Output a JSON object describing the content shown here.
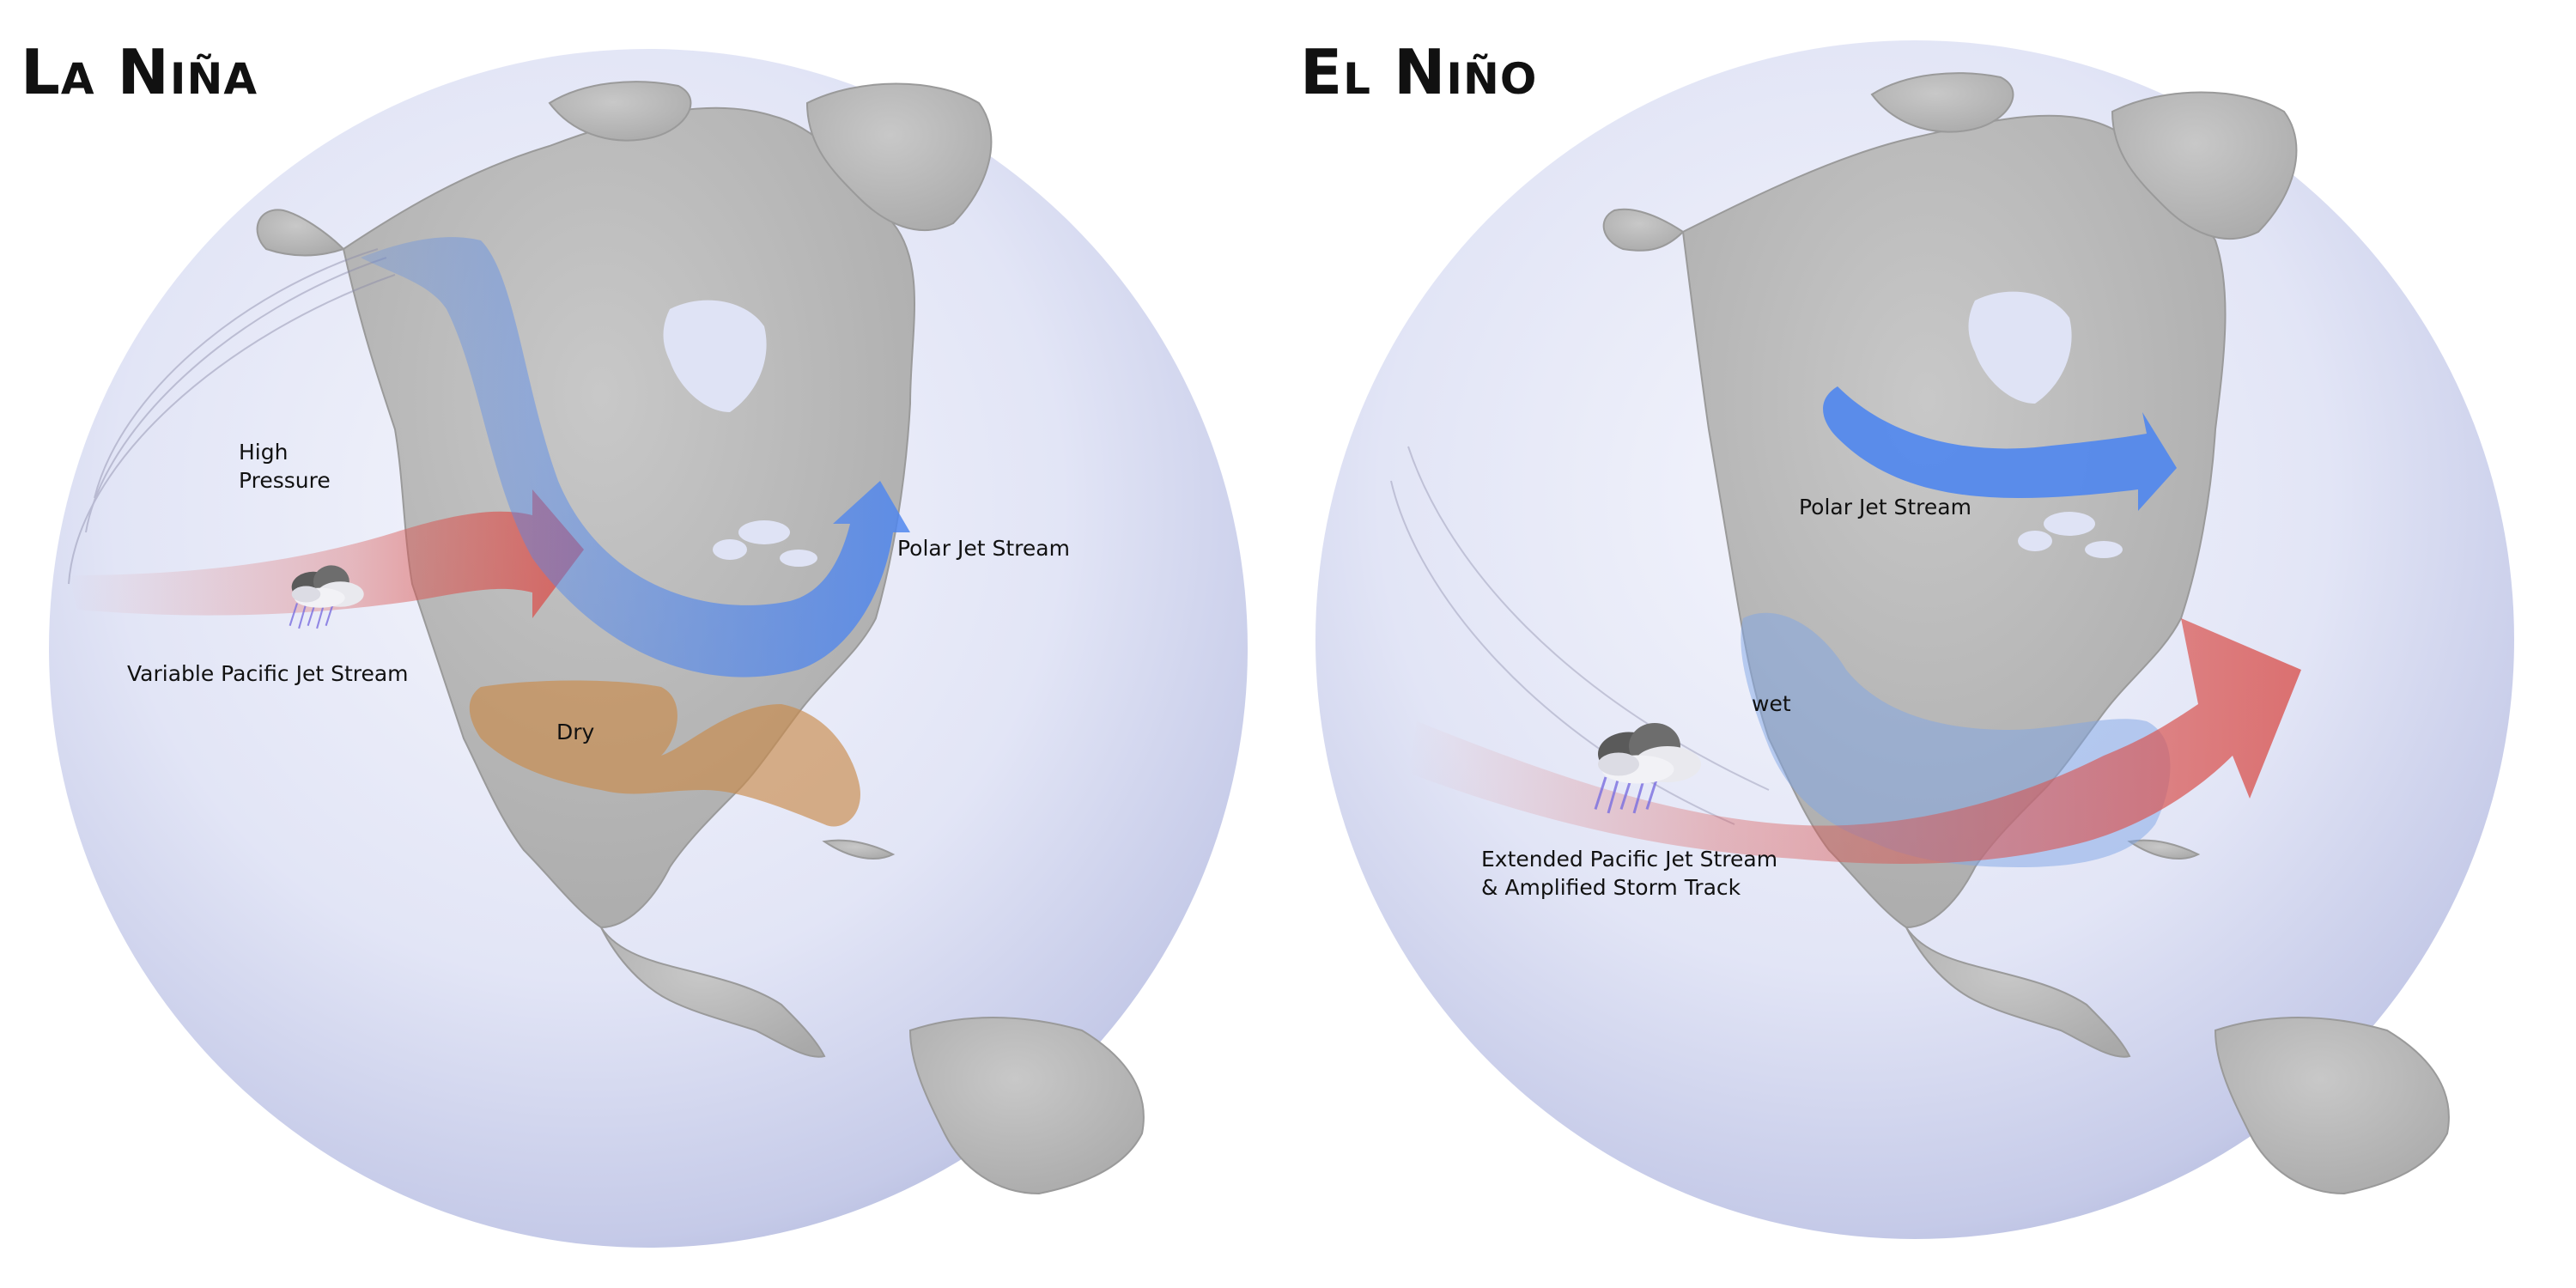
{
  "la_nina": {
    "title": "La Niña",
    "labels": {
      "high_pressure_1": "High",
      "high_pressure_2": "Pressure",
      "polar_jet": "Polar Jet Stream",
      "pacific_jet": "Variable Pacific Jet Stream",
      "dry": "Dry"
    }
  },
  "el_nino": {
    "title": "El Niño",
    "labels": {
      "polar_jet": "Polar Jet Stream",
      "wet": "wet",
      "pacific_jet_1": "Extended Pacific Jet Stream",
      "pacific_jet_2": "& Amplified Storm Track"
    }
  },
  "colors": {
    "ocean_light": "#eef0fb",
    "ocean_dark": "#a9b0d6",
    "land": "#b9b9b9",
    "polar_jet": "#4f86ee",
    "pacific_jet": "#d9534f",
    "dry": "#c98b4a",
    "wet": "#7fa6e6"
  },
  "icons": {
    "storm": "storm-cloud-icon"
  }
}
